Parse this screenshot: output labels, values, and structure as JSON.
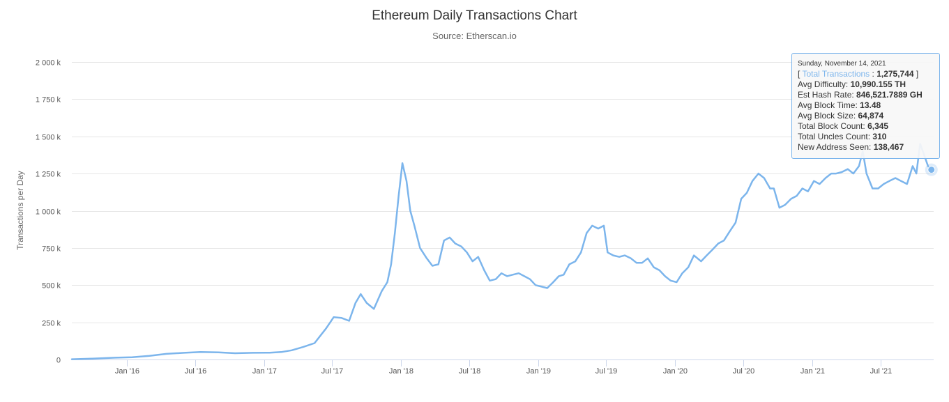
{
  "title": "Ethereum Daily Transactions Chart",
  "subtitle": "Source: Etherscan.io",
  "colors": {
    "series": "#7cb5ec",
    "grid": "#e6e6e6",
    "axis": "#ccd6eb"
  },
  "chart_data": {
    "type": "line",
    "title": "Ethereum Daily Transactions Chart",
    "subtitle": "Source: Etherscan.io",
    "ylabel": "Transactions per Day",
    "xlabel": "",
    "ylim": [
      0,
      2000000
    ],
    "xlim": [
      "2015-08-07",
      "2021-11-20"
    ],
    "y_ticks": [
      {
        "value": 0,
        "label": "0"
      },
      {
        "value": 250000,
        "label": "250 k"
      },
      {
        "value": 500000,
        "label": "500 k"
      },
      {
        "value": 750000,
        "label": "750 k"
      },
      {
        "value": 1000000,
        "label": "1 000 k"
      },
      {
        "value": 1250000,
        "label": "1 250 k"
      },
      {
        "value": 1500000,
        "label": "1 500 k"
      },
      {
        "value": 1750000,
        "label": "1 750 k"
      },
      {
        "value": 2000000,
        "label": "2 000 k"
      }
    ],
    "x_ticks": [
      {
        "value": "2016-01-01",
        "label": "Jan '16"
      },
      {
        "value": "2016-07-01",
        "label": "Jul '16"
      },
      {
        "value": "2017-01-01",
        "label": "Jan '17"
      },
      {
        "value": "2017-07-01",
        "label": "Jul '17"
      },
      {
        "value": "2018-01-01",
        "label": "Jan '18"
      },
      {
        "value": "2018-07-01",
        "label": "Jul '18"
      },
      {
        "value": "2019-01-01",
        "label": "Jan '19"
      },
      {
        "value": "2019-07-01",
        "label": "Jul '19"
      },
      {
        "value": "2020-01-01",
        "label": "Jan '20"
      },
      {
        "value": "2020-07-01",
        "label": "Jul '20"
      },
      {
        "value": "2021-01-01",
        "label": "Jan '21"
      },
      {
        "value": "2021-07-01",
        "label": "Jul '21"
      }
    ],
    "grid": true,
    "legend": "none",
    "series": [
      {
        "name": "Total Transactions",
        "color": "#7cb5ec",
        "points": [
          [
            "2015-08-07",
            2000
          ],
          [
            "2015-10-01",
            6000
          ],
          [
            "2015-12-01",
            12000
          ],
          [
            "2016-01-15",
            15000
          ],
          [
            "2016-03-01",
            25000
          ],
          [
            "2016-04-15",
            38000
          ],
          [
            "2016-06-01",
            45000
          ],
          [
            "2016-07-15",
            50000
          ],
          [
            "2016-09-01",
            48000
          ],
          [
            "2016-10-15",
            42000
          ],
          [
            "2016-12-01",
            45000
          ],
          [
            "2017-01-15",
            46000
          ],
          [
            "2017-02-15",
            50000
          ],
          [
            "2017-03-15",
            62000
          ],
          [
            "2017-04-15",
            85000
          ],
          [
            "2017-05-15",
            110000
          ],
          [
            "2017-06-15",
            210000
          ],
          [
            "2017-07-05",
            285000
          ],
          [
            "2017-07-25",
            280000
          ],
          [
            "2017-08-15",
            260000
          ],
          [
            "2017-09-01",
            380000
          ],
          [
            "2017-09-15",
            440000
          ],
          [
            "2017-10-01",
            380000
          ],
          [
            "2017-10-20",
            340000
          ],
          [
            "2017-11-10",
            460000
          ],
          [
            "2017-11-25",
            520000
          ],
          [
            "2017-12-05",
            640000
          ],
          [
            "2017-12-15",
            850000
          ],
          [
            "2017-12-25",
            1100000
          ],
          [
            "2018-01-04",
            1320000
          ],
          [
            "2018-01-15",
            1200000
          ],
          [
            "2018-01-25",
            1000000
          ],
          [
            "2018-02-05",
            900000
          ],
          [
            "2018-02-20",
            750000
          ],
          [
            "2018-03-10",
            680000
          ],
          [
            "2018-03-25",
            630000
          ],
          [
            "2018-04-10",
            640000
          ],
          [
            "2018-04-25",
            800000
          ],
          [
            "2018-05-10",
            820000
          ],
          [
            "2018-05-25",
            780000
          ],
          [
            "2018-06-10",
            760000
          ],
          [
            "2018-06-25",
            720000
          ],
          [
            "2018-07-10",
            660000
          ],
          [
            "2018-07-25",
            690000
          ],
          [
            "2018-08-10",
            600000
          ],
          [
            "2018-08-25",
            530000
          ],
          [
            "2018-09-10",
            540000
          ],
          [
            "2018-09-25",
            580000
          ],
          [
            "2018-10-10",
            560000
          ],
          [
            "2018-10-25",
            570000
          ],
          [
            "2018-11-10",
            580000
          ],
          [
            "2018-11-25",
            560000
          ],
          [
            "2018-12-10",
            540000
          ],
          [
            "2018-12-25",
            500000
          ],
          [
            "2019-01-10",
            490000
          ],
          [
            "2019-01-25",
            480000
          ],
          [
            "2019-02-10",
            520000
          ],
          [
            "2019-02-25",
            560000
          ],
          [
            "2019-03-10",
            570000
          ],
          [
            "2019-03-25",
            640000
          ],
          [
            "2019-04-10",
            660000
          ],
          [
            "2019-04-25",
            720000
          ],
          [
            "2019-05-10",
            850000
          ],
          [
            "2019-05-25",
            900000
          ],
          [
            "2019-06-10",
            880000
          ],
          [
            "2019-06-25",
            900000
          ],
          [
            "2019-07-05",
            720000
          ],
          [
            "2019-07-20",
            700000
          ],
          [
            "2019-08-05",
            690000
          ],
          [
            "2019-08-20",
            700000
          ],
          [
            "2019-09-05",
            680000
          ],
          [
            "2019-09-20",
            650000
          ],
          [
            "2019-10-05",
            650000
          ],
          [
            "2019-10-20",
            680000
          ],
          [
            "2019-11-05",
            620000
          ],
          [
            "2019-11-20",
            600000
          ],
          [
            "2019-12-05",
            560000
          ],
          [
            "2019-12-20",
            530000
          ],
          [
            "2020-01-05",
            520000
          ],
          [
            "2020-01-20",
            580000
          ],
          [
            "2020-02-05",
            620000
          ],
          [
            "2020-02-20",
            700000
          ],
          [
            "2020-03-10",
            660000
          ],
          [
            "2020-03-25",
            700000
          ],
          [
            "2020-04-10",
            740000
          ],
          [
            "2020-04-25",
            780000
          ],
          [
            "2020-05-10",
            800000
          ],
          [
            "2020-05-25",
            860000
          ],
          [
            "2020-06-10",
            920000
          ],
          [
            "2020-06-25",
            1080000
          ],
          [
            "2020-07-10",
            1120000
          ],
          [
            "2020-07-25",
            1200000
          ],
          [
            "2020-08-10",
            1250000
          ],
          [
            "2020-08-25",
            1220000
          ],
          [
            "2020-09-10",
            1150000
          ],
          [
            "2020-09-20",
            1150000
          ],
          [
            "2020-10-05",
            1020000
          ],
          [
            "2020-10-20",
            1040000
          ],
          [
            "2020-11-05",
            1080000
          ],
          [
            "2020-11-20",
            1100000
          ],
          [
            "2020-12-05",
            1150000
          ],
          [
            "2020-12-20",
            1130000
          ],
          [
            "2021-01-05",
            1200000
          ],
          [
            "2021-01-20",
            1180000
          ],
          [
            "2021-02-05",
            1220000
          ],
          [
            "2021-02-20",
            1250000
          ],
          [
            "2021-03-05",
            1250000
          ],
          [
            "2021-03-20",
            1260000
          ],
          [
            "2021-04-05",
            1280000
          ],
          [
            "2021-04-20",
            1250000
          ],
          [
            "2021-05-05",
            1300000
          ],
          [
            "2021-05-15",
            1400000
          ],
          [
            "2021-05-25",
            1250000
          ],
          [
            "2021-06-10",
            1150000
          ],
          [
            "2021-06-25",
            1150000
          ],
          [
            "2021-07-10",
            1180000
          ],
          [
            "2021-07-25",
            1200000
          ],
          [
            "2021-08-10",
            1220000
          ],
          [
            "2021-08-25",
            1200000
          ],
          [
            "2021-09-10",
            1180000
          ],
          [
            "2021-09-25",
            1300000
          ],
          [
            "2021-10-05",
            1250000
          ],
          [
            "2021-10-15",
            1450000
          ],
          [
            "2021-10-25",
            1380000
          ],
          [
            "2021-11-05",
            1300000
          ],
          [
            "2021-11-14",
            1275744
          ]
        ]
      }
    ],
    "highlight": {
      "x": "2021-11-14",
      "y": 1275744
    }
  },
  "tooltip": {
    "date": "Sunday, November 14, 2021",
    "series_name": "Total Transactions",
    "series_value": "1,275,744",
    "rows": [
      {
        "label": "Avg Difficulty: ",
        "value": "10,990.155 TH"
      },
      {
        "label": "Est Hash Rate: ",
        "value": "846,521.7889 GH"
      },
      {
        "label": "Avg Block Time: ",
        "value": "13.48"
      },
      {
        "label": "Avg Block Size: ",
        "value": "64,874"
      },
      {
        "label": "Total Block Count: ",
        "value": "6,345"
      },
      {
        "label": "Total Uncles Count: ",
        "value": "310"
      },
      {
        "label": "New Address Seen: ",
        "value": "138,467"
      }
    ]
  }
}
